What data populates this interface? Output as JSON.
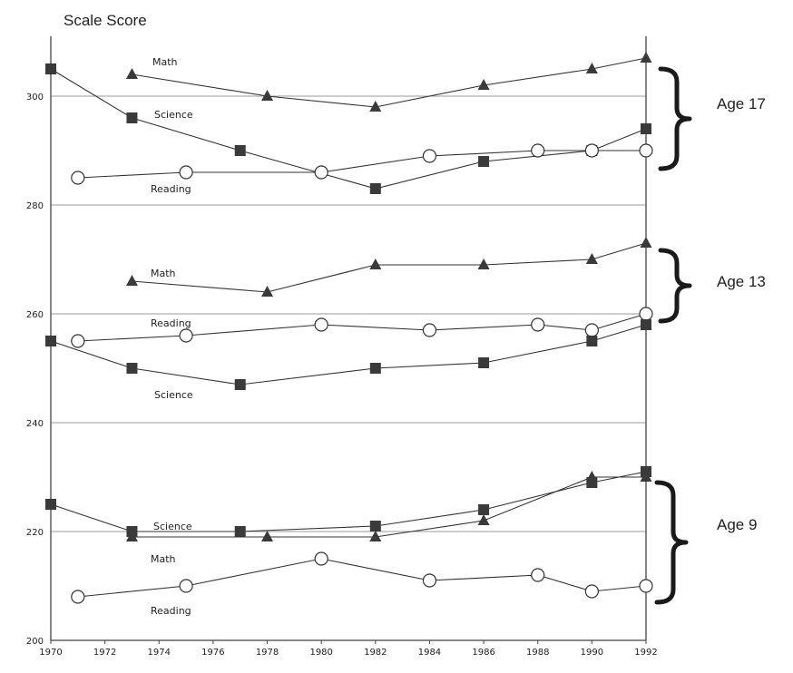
{
  "chart_data": {
    "type": "line",
    "title": "",
    "ylabel": "Scale Score",
    "xlabel": "",
    "xlim": [
      1970,
      1992
    ],
    "ylim": [
      200,
      310
    ],
    "x_ticks": [
      "1970",
      "1972",
      "1974",
      "1976",
      "1978",
      "1980",
      "1982",
      "1984",
      "1986",
      "1988",
      "1990",
      "1992"
    ],
    "y_ticks": [
      "200",
      "220",
      "240",
      "260",
      "280",
      "300"
    ],
    "grid": "horizontal",
    "groups": [
      {
        "name": "Age 17",
        "series": [
          {
            "name": "Math",
            "marker": "triangle",
            "points": [
              [
                1973,
                304
              ],
              [
                1978,
                300
              ],
              [
                1982,
                298
              ],
              [
                1986,
                302
              ],
              [
                1990,
                305
              ],
              [
                1992,
                307
              ]
            ]
          },
          {
            "name": "Science",
            "marker": "square",
            "points": [
              [
                1970,
                305
              ],
              [
                1973,
                296
              ],
              [
                1977,
                290
              ],
              [
                1982,
                283
              ],
              [
                1986,
                288
              ],
              [
                1990,
                290
              ],
              [
                1992,
                294
              ]
            ]
          },
          {
            "name": "Reading",
            "marker": "circle",
            "points": [
              [
                1971,
                285
              ],
              [
                1975,
                286
              ],
              [
                1980,
                286
              ],
              [
                1984,
                289
              ],
              [
                1988,
                290
              ],
              [
                1990,
                290
              ],
              [
                1992,
                290
              ]
            ]
          }
        ]
      },
      {
        "name": "Age 13",
        "series": [
          {
            "name": "Math",
            "marker": "triangle",
            "points": [
              [
                1973,
                266
              ],
              [
                1978,
                264
              ],
              [
                1982,
                269
              ],
              [
                1986,
                269
              ],
              [
                1990,
                270
              ],
              [
                1992,
                273
              ]
            ]
          },
          {
            "name": "Reading",
            "marker": "circle",
            "points": [
              [
                1971,
                255
              ],
              [
                1975,
                256
              ],
              [
                1980,
                258
              ],
              [
                1984,
                257
              ],
              [
                1988,
                258
              ],
              [
                1990,
                257
              ],
              [
                1992,
                260
              ]
            ]
          },
          {
            "name": "Science",
            "marker": "square",
            "points": [
              [
                1970,
                255
              ],
              [
                1973,
                250
              ],
              [
                1977,
                247
              ],
              [
                1982,
                250
              ],
              [
                1986,
                251
              ],
              [
                1990,
                255
              ],
              [
                1992,
                258
              ]
            ]
          }
        ]
      },
      {
        "name": "Age 9",
        "series": [
          {
            "name": "Science",
            "marker": "square",
            "points": [
              [
                1970,
                225
              ],
              [
                1973,
                220
              ],
              [
                1977,
                220
              ],
              [
                1982,
                221
              ],
              [
                1986,
                224
              ],
              [
                1990,
                229
              ],
              [
                1992,
                231
              ]
            ]
          },
          {
            "name": "Math",
            "marker": "triangle",
            "points": [
              [
                1973,
                219
              ],
              [
                1978,
                219
              ],
              [
                1982,
                219
              ],
              [
                1986,
                222
              ],
              [
                1990,
                230
              ],
              [
                1992,
                230
              ]
            ]
          },
          {
            "name": "Reading",
            "marker": "circle",
            "points": [
              [
                1971,
                208
              ],
              [
                1975,
                210
              ],
              [
                1980,
                215
              ],
              [
                1984,
                211
              ],
              [
                1988,
                212
              ],
              [
                1990,
                209
              ],
              [
                1992,
                210
              ]
            ]
          }
        ]
      }
    ]
  }
}
